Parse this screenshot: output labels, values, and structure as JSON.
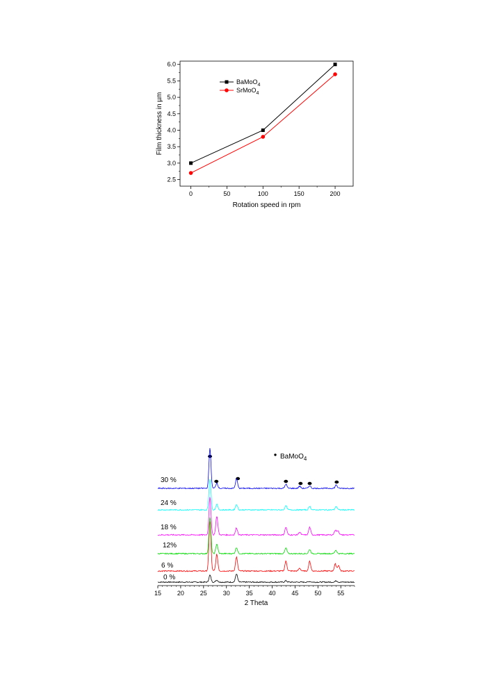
{
  "chart_data": [
    {
      "type": "line",
      "xlabel": "Rotation speed in rpm",
      "ylabel": "Film thickness in µm",
      "xlim": [
        -15,
        225
      ],
      "ylim": [
        2.3,
        6.1
      ],
      "xticks": [
        0,
        50,
        100,
        150,
        200
      ],
      "yticks": [
        2.5,
        3.0,
        3.5,
        4.0,
        4.5,
        5.0,
        5.5,
        6.0
      ],
      "xtick_labels": [
        "0",
        "50",
        "100",
        "150",
        "200"
      ],
      "ytick_labels": [
        "2.5",
        "3.0",
        "3.5",
        "4.0",
        "4.5",
        "5.0",
        "5.5",
        "6.0"
      ],
      "legend_position": "top-left",
      "series": [
        {
          "name": "BaMoO",
          "name_sub": "4",
          "color": "#000000",
          "marker": "square",
          "x": [
            0,
            100,
            200
          ],
          "y": [
            3.0,
            4.0,
            6.0
          ]
        },
        {
          "name": "SrMoO",
          "name_sub": "4",
          "color": "#ff0000",
          "marker": "circle",
          "x": [
            0,
            100,
            200
          ],
          "y": [
            2.7,
            3.8,
            5.7
          ]
        }
      ]
    },
    {
      "type": "line",
      "xlabel": "2 Theta",
      "ylabel": "",
      "xlim": [
        15,
        58
      ],
      "xticks": [
        15,
        20,
        25,
        30,
        35,
        40,
        45,
        50,
        55
      ],
      "xtick_labels": [
        "15",
        "20",
        "25",
        "30",
        "35",
        "40",
        "45",
        "50",
        "55"
      ],
      "legend": {
        "marker": "●",
        "label": "BaMoO",
        "label_sub": "4"
      },
      "peak_markers_2theta": [
        26.4,
        27.8,
        32.5,
        43.0,
        46.2,
        48.2,
        54.1
      ],
      "series": [
        {
          "name": "0 %",
          "color": "#000000",
          "peaks": [
            [
              26.4,
              10
            ],
            [
              32.2,
              12
            ],
            [
              27.9,
              3
            ],
            [
              43.0,
              2
            ],
            [
              54.0,
              2
            ],
            [
              48.2,
              1
            ]
          ]
        },
        {
          "name": "6 %",
          "color": "#ff0000",
          "peaks": [
            [
              26.4,
              72
            ],
            [
              27.9,
              24
            ],
            [
              32.2,
              20
            ],
            [
              43.0,
              14
            ],
            [
              48.2,
              14
            ],
            [
              53.8,
              10
            ],
            [
              54.5,
              8
            ],
            [
              46.0,
              4
            ]
          ]
        },
        {
          "name": "12%",
          "color": "#00dd00",
          "peaks": [
            [
              26.4,
              52
            ],
            [
              27.9,
              14
            ],
            [
              32.2,
              9
            ],
            [
              43.0,
              8
            ],
            [
              48.2,
              6
            ],
            [
              53.9,
              5
            ]
          ]
        },
        {
          "name": "18 %",
          "color": "#ff00ff",
          "peaks": [
            [
              26.4,
              55
            ],
            [
              27.9,
              27
            ],
            [
              32.2,
              10
            ],
            [
              43.0,
              11
            ],
            [
              48.2,
              11
            ],
            [
              53.8,
              7
            ],
            [
              54.4,
              6
            ],
            [
              46.0,
              4
            ]
          ]
        },
        {
          "name": "24 %",
          "color": "#00ffff",
          "peaks": [
            [
              26.4,
              45
            ],
            [
              27.9,
              8
            ],
            [
              32.2,
              8
            ],
            [
              43.0,
              6
            ],
            [
              48.2,
              5
            ],
            [
              54.0,
              5
            ]
          ]
        },
        {
          "name": "30 %",
          "color": "#0000ff",
          "peaks": [
            [
              26.4,
              58
            ],
            [
              27.9,
              8
            ],
            [
              32.2,
              14
            ],
            [
              43.0,
              6
            ],
            [
              46.0,
              3
            ],
            [
              48.2,
              4
            ],
            [
              54.0,
              5
            ]
          ]
        }
      ]
    }
  ]
}
